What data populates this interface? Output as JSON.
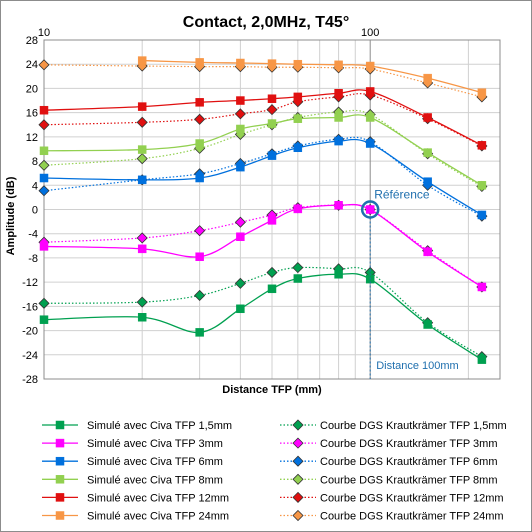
{
  "chart_data": {
    "type": "line",
    "title": "Contact, 2,0MHz, T45°",
    "xlabel": "Distance TFP (mm)",
    "ylabel": "Amplitude (dB)",
    "x_scale": "log",
    "xlim": [
      10,
      250
    ],
    "ylim": [
      -28,
      28
    ],
    "x_tick_labels": [
      "10",
      "100"
    ],
    "y_ticks": [
      -28,
      -24,
      -20,
      -16,
      -12,
      -8,
      -4,
      0,
      4,
      8,
      12,
      16,
      20,
      24,
      28
    ],
    "grid": true,
    "legend_position": "bottom",
    "annotations": {
      "reference_label": "Référence",
      "reference_point": {
        "x": 100,
        "y": 0
      },
      "distance_label": "Distance 100mm",
      "distance_x": 100
    },
    "series": [
      {
        "name": "Simulé avec Civa TFP 1,5mm",
        "color": "#00a050",
        "style": "solid",
        "marker": "square",
        "x": [
          10,
          20,
          30,
          40,
          50,
          60,
          80,
          100,
          150,
          220
        ],
        "y": [
          -18.2,
          -17.8,
          -20.3,
          -16.4,
          -13.1,
          -11.4,
          -10.7,
          -11.5,
          -19.0,
          -24.8
        ]
      },
      {
        "name": "Simulé avec Civa TFP 3mm",
        "color": "#ff00ff",
        "style": "solid",
        "marker": "square",
        "x": [
          10,
          20,
          30,
          40,
          50,
          60,
          80,
          100,
          150,
          220
        ],
        "y": [
          -6.1,
          -6.5,
          -7.8,
          -4.5,
          -1.8,
          0.1,
          0.7,
          0.0,
          -7.0,
          -12.8
        ]
      },
      {
        "name": "Simulé avec Civa TFP 6mm",
        "color": "#0070dd",
        "style": "solid",
        "marker": "square",
        "x": [
          10,
          20,
          30,
          40,
          50,
          60,
          80,
          100,
          150,
          220
        ],
        "y": [
          5.2,
          4.9,
          5.2,
          7.0,
          8.9,
          10.2,
          11.3,
          10.9,
          4.6,
          -0.9
        ]
      },
      {
        "name": "Simulé avec Civa TFP 8mm",
        "color": "#92d050",
        "style": "solid",
        "marker": "square",
        "x": [
          10,
          20,
          30,
          40,
          50,
          60,
          80,
          100,
          150,
          220
        ],
        "y": [
          9.7,
          9.9,
          10.9,
          13.3,
          14.2,
          15.0,
          15.2,
          15.2,
          9.4,
          4.0
        ]
      },
      {
        "name": "Simulé avec Civa TFP 12mm",
        "color": "#e01010",
        "style": "solid",
        "marker": "square",
        "x": [
          10,
          20,
          30,
          40,
          50,
          60,
          80,
          100,
          150,
          220
        ],
        "y": [
          16.4,
          17.0,
          17.7,
          18.0,
          18.3,
          18.6,
          19.2,
          19.5,
          15.2,
          10.6
        ]
      },
      {
        "name": "Simulé avec Civa TFP 24mm",
        "color": "#f79646",
        "style": "solid",
        "marker": "square",
        "x": [
          20,
          30,
          40,
          50,
          60,
          80,
          100,
          150,
          220
        ],
        "y": [
          24.6,
          24.3,
          24.2,
          24.1,
          24.0,
          23.9,
          23.7,
          21.7,
          19.3
        ]
      },
      {
        "name": "Courbe DGS Krautkrämer TFP 1,5mm",
        "color": "#00a050",
        "style": "dotted",
        "marker": "diamond",
        "x": [
          10,
          20,
          30,
          40,
          50,
          60,
          80,
          100,
          150,
          220
        ],
        "y": [
          -15.5,
          -15.3,
          -14.2,
          -12.2,
          -10.4,
          -9.6,
          -9.8,
          -10.4,
          -18.7,
          -24.3
        ]
      },
      {
        "name": "Courbe DGS Krautkrämer TFP 3mm",
        "color": "#ff00ff",
        "style": "dotted",
        "marker": "diamond",
        "x": [
          10,
          20,
          30,
          40,
          50,
          60,
          80,
          100,
          150,
          220
        ],
        "y": [
          -5.4,
          -4.7,
          -3.5,
          -2.1,
          -0.9,
          0.3,
          0.7,
          0.0,
          -6.8,
          -12.8
        ]
      },
      {
        "name": "Courbe DGS Krautkrämer TFP 6mm",
        "color": "#0070dd",
        "style": "dotted",
        "marker": "diamond",
        "x": [
          10,
          20,
          30,
          40,
          50,
          60,
          80,
          100,
          150,
          220
        ],
        "y": [
          3.1,
          4.9,
          5.9,
          7.6,
          9.2,
          10.5,
          11.6,
          11.2,
          4.0,
          -1.1
        ]
      },
      {
        "name": "Courbe DGS Krautkrämer TFP 8mm",
        "color": "#92d050",
        "style": "dotted",
        "marker": "diamond",
        "x": [
          10,
          20,
          30,
          40,
          50,
          60,
          80,
          100,
          150,
          220
        ],
        "y": [
          7.3,
          8.4,
          10.1,
          12.4,
          14.0,
          15.2,
          16.1,
          15.7,
          9.2,
          3.8
        ]
      },
      {
        "name": "Courbe DGS Krautkrämer TFP 12mm",
        "color": "#e01010",
        "style": "dotted",
        "marker": "diamond",
        "x": [
          10,
          20,
          30,
          40,
          50,
          60,
          80,
          100,
          150,
          220
        ],
        "y": [
          14.0,
          14.4,
          14.9,
          15.8,
          16.5,
          17.8,
          18.6,
          18.9,
          15.0,
          10.5
        ]
      },
      {
        "name": "Courbe DGS Krautkrämer TFP 24mm",
        "color": "#f79646",
        "style": "dotted",
        "marker": "diamond",
        "x": [
          10,
          20,
          30,
          40,
          50,
          60,
          80,
          100,
          150,
          220
        ],
        "y": [
          23.9,
          23.7,
          23.6,
          23.6,
          23.5,
          23.5,
          23.4,
          23.2,
          20.9,
          18.6
        ]
      }
    ]
  }
}
